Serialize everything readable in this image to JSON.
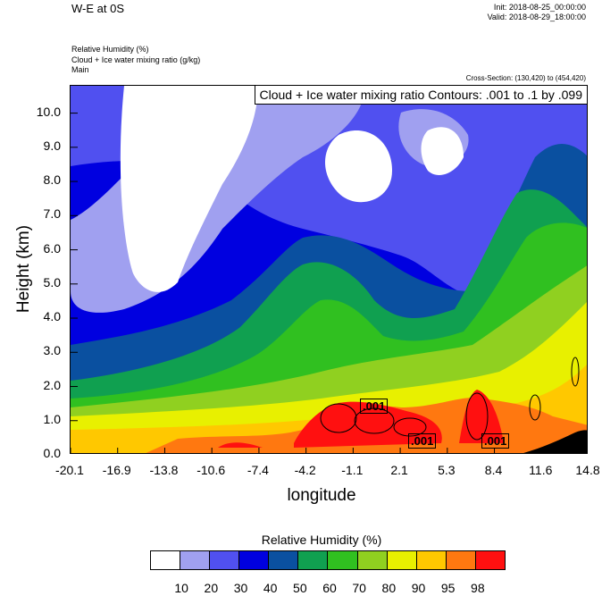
{
  "header": {
    "title": "W-E at 0S",
    "init": "Init: 2018-08-25_00:00:00",
    "valid": "Valid: 2018-08-29_18:00:00",
    "field1": "Relative Humidity   (%)",
    "field2": "Cloud + Ice water mixing ratio   (g/kg)",
    "field3": "Main",
    "cross_section": "Cross-Section: (130,420) to (454,420)"
  },
  "contour_info": "Cloud + Ice water mixing ratio Contours: .001 to .1 by .099",
  "contour_labels": [
    ".001",
    ".001",
    ".001"
  ],
  "chart_data": {
    "type": "heatmap",
    "xlabel": "longitude",
    "ylabel": "Height (km)",
    "xticks": [
      "-20.1",
      "-16.9",
      "-13.8",
      "-10.6",
      "-7.4",
      "-4.2",
      "-1.1",
      "2.1",
      "5.3",
      "8.4",
      "11.6",
      "14.8"
    ],
    "yticks": [
      "0.0",
      "1.0",
      "2.0",
      "3.0",
      "4.0",
      "5.0",
      "6.0",
      "7.0",
      "8.0",
      "9.0",
      "10.0"
    ],
    "xlim": [
      -20.1,
      14.8
    ],
    "ylim": [
      0,
      10.8
    ],
    "colorbar": {
      "title": "Relative Humidity  (%)",
      "labels": [
        "10",
        "20",
        "30",
        "40",
        "50",
        "60",
        "70",
        "80",
        "90",
        "95",
        "98"
      ],
      "colors": [
        "#ffffff",
        "#a0a0f0",
        "#5050f0",
        "#0000e0",
        "#0a50a0",
        "#10a050",
        "#30c020",
        "#90d020",
        "#e8f000",
        "#ffc800",
        "#ff7810",
        "#ff1010"
      ]
    },
    "terrain_color": "#000000",
    "cloud_contour_levels": [
      0.001,
      0.1
    ]
  }
}
